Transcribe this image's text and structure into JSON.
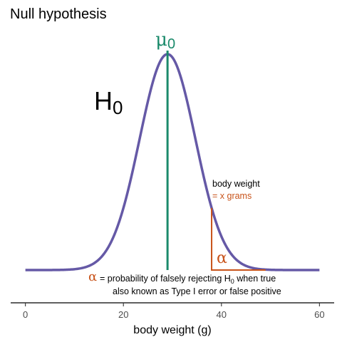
{
  "chart_data": {
    "type": "line",
    "title": "Null hypothesis",
    "xlabel": "body weight (g)",
    "ylabel": "",
    "xlim": [
      -3,
      63
    ],
    "xticks": [
      0,
      20,
      40,
      60
    ],
    "grid": false,
    "series": [
      {
        "name": "H0",
        "distribution": "normal",
        "mean": 29,
        "sd": 5.7,
        "x_range": [
          0,
          60
        ],
        "color": "#6559a6"
      }
    ],
    "mean_line": {
      "x": 29,
      "label": "μ0",
      "color": "#1b8a6b"
    },
    "critical_value": {
      "x": 38,
      "color": "#c8531a"
    },
    "annotations": {
      "h0_label": "H0",
      "mu_label": "μ0",
      "critical_line1": "body weight",
      "critical_line2": "= x grams",
      "alpha_symbol": "α",
      "alpha_desc_line1": "= probability of falsely rejecting H0 when true",
      "alpha_desc_line2": "also known as Type I error or false positive"
    }
  },
  "colors": {
    "curve": "#6559a6",
    "mean": "#1b8a6b",
    "alpha": "#c8531a",
    "text": "#000000"
  }
}
